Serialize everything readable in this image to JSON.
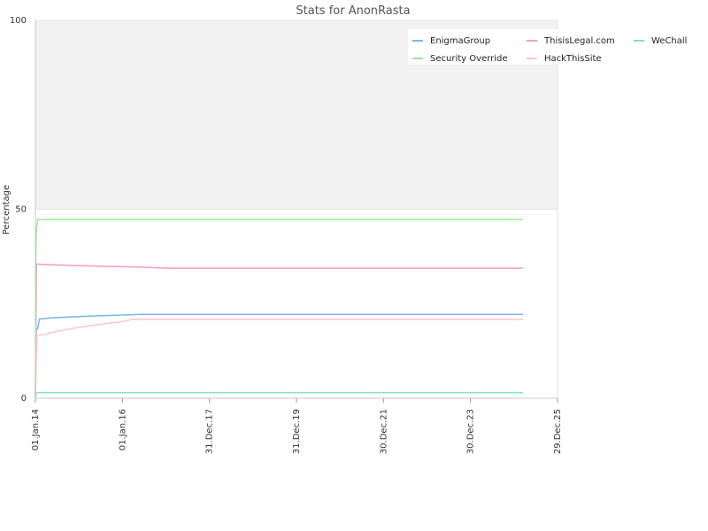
{
  "chart_data": {
    "type": "line",
    "title": "Stats for AnonRasta",
    "ylabel": "Percentage",
    "xlabel": "",
    "ylim": [
      0,
      100
    ],
    "y_ticks": [
      0,
      50,
      100
    ],
    "xlim": [
      "2014-01-01",
      "2025-12-29"
    ],
    "x_ticks": [
      "2014-01-01",
      "2016-01-01",
      "2017-12-31",
      "2019-12-31",
      "2021-12-30",
      "2023-12-30",
      "2025-12-29"
    ],
    "x_tick_labels": [
      "01.Jan.14",
      "01.Jan.16",
      "31.Dec.17",
      "31.Dec.19",
      "30.Dec.21",
      "30.Dec.23",
      "29.Dec.25"
    ],
    "upper_band": [
      50,
      100
    ],
    "legend_position": "top-right",
    "series": [
      {
        "name": "EnigmaGroup",
        "color": "#7cb5ec",
        "points": [
          [
            "2014-01-01",
            0
          ],
          [
            "2014-01-08",
            18
          ],
          [
            "2014-01-20",
            18.5
          ],
          [
            "2014-02-05",
            21
          ],
          [
            "2014-06-01",
            21.3
          ],
          [
            "2015-01-01",
            21.6
          ],
          [
            "2015-06-01",
            21.8
          ],
          [
            "2016-01-01",
            22
          ],
          [
            "2016-06-01",
            22.2
          ],
          [
            "2025-03-15",
            22.2
          ]
        ]
      },
      {
        "name": "ThisisLegal.com",
        "color": "#f29ac9",
        "points": [
          [
            "2014-01-01",
            0
          ],
          [
            "2014-01-10",
            35.5
          ],
          [
            "2014-06-01",
            35.3
          ],
          [
            "2015-01-01",
            35.1
          ],
          [
            "2016-01-01",
            34.8
          ],
          [
            "2016-06-01",
            34.7
          ],
          [
            "2017-01-01",
            34.4
          ],
          [
            "2025-03-15",
            34.4
          ]
        ]
      },
      {
        "name": "WeChall",
        "color": "#7fe3c4",
        "points": [
          [
            "2014-01-01",
            0
          ],
          [
            "2014-01-10",
            1.5
          ],
          [
            "2025-03-15",
            1.5
          ]
        ]
      },
      {
        "name": "Security Override",
        "color": "#90ee90",
        "points": [
          [
            "2014-01-01",
            0
          ],
          [
            "2014-01-05",
            39
          ],
          [
            "2014-01-10",
            45
          ],
          [
            "2014-01-20",
            47.3
          ],
          [
            "2025-03-15",
            47.3
          ]
        ]
      },
      {
        "name": "HackThisSite",
        "color": "#ffc6c6",
        "points": [
          [
            "2014-01-01",
            0
          ],
          [
            "2014-01-15",
            16.5
          ],
          [
            "2014-06-01",
            17.5
          ],
          [
            "2015-01-01",
            18.8
          ],
          [
            "2016-01-01",
            20.3
          ],
          [
            "2016-04-01",
            20.9
          ],
          [
            "2025-03-15",
            20.9
          ]
        ]
      }
    ]
  }
}
